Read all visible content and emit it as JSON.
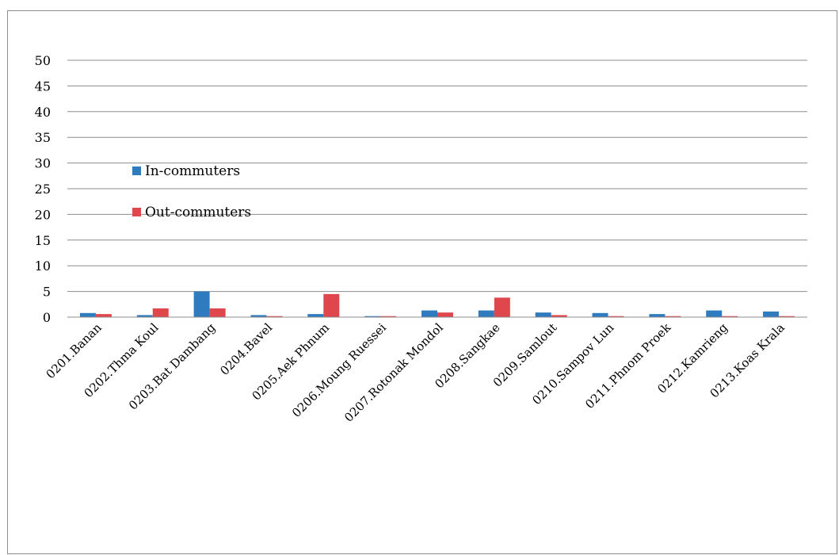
{
  "chart_data": {
    "type": "bar",
    "title": "",
    "xlabel": "",
    "ylabel": "",
    "ylim": [
      0,
      50
    ],
    "yticks": [
      0,
      5,
      10,
      15,
      20,
      25,
      30,
      35,
      40,
      45,
      50
    ],
    "grid": true,
    "legend_position": "left-middle",
    "categories": [
      "0201.Banan",
      "0202.Thma Koul",
      "0203.Bat Dambang",
      "0204.Bavel",
      "0205.Aek Phnum",
      "0206.Moung Ruessei",
      "0207.Rotonak Mondol",
      "0208.Sangkae",
      "0209.Samlout",
      "0210.Sampov Lun",
      "0211.Phnom Proek",
      "0212.Kamrieng",
      "0213.Koas Krala"
    ],
    "series": [
      {
        "name": "In-commuters",
        "color": "#2e7bbf",
        "values": [
          0.8,
          0.4,
          5.0,
          0.4,
          0.6,
          0.2,
          1.3,
          1.3,
          0.9,
          0.8,
          0.6,
          1.3,
          1.1
        ]
      },
      {
        "name": "Out-commuters",
        "color": "#e0474c",
        "values": [
          0.6,
          1.7,
          1.7,
          0.2,
          4.5,
          0.2,
          0.9,
          3.8,
          0.4,
          0.2,
          0.2,
          0.2,
          0.2
        ]
      }
    ]
  }
}
